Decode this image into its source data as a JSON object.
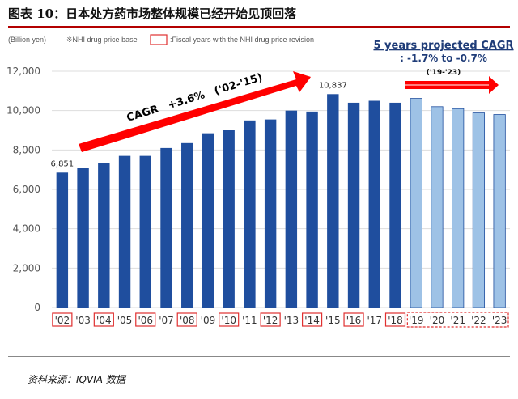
{
  "title": "图表 10：日本处方药市场整体规模已经开始见顶回落",
  "source": "资料来源：IQVIA 数据",
  "legend": {
    "unit": "(Billion yen)",
    "base_note": "※NHI drug price base",
    "revision_note": ":Fiscal years with the NHI drug price revision"
  },
  "colors": {
    "actual_bar": "#1f4e9e",
    "projected_bar": "#9ec2e6",
    "projected_edge": "#1f4e9e",
    "arrow": "#ff0000",
    "revision_box": "#e03030",
    "axis_text": "#555555"
  },
  "chart_data": {
    "type": "bar",
    "categories": [
      "'02",
      "'03",
      "'04",
      "'05",
      "'06",
      "'07",
      "'08",
      "'09",
      "'10",
      "'11",
      "'12",
      "'13",
      "'14",
      "'15",
      "'16",
      "'17",
      "'18",
      "'19",
      "'20",
      "'21",
      "'22",
      "'23"
    ],
    "values": [
      6851,
      7100,
      7350,
      7700,
      7700,
      8100,
      8350,
      8850,
      9000,
      9500,
      9550,
      10000,
      9950,
      10837,
      10400,
      10500,
      10400,
      10620,
      10200,
      10100,
      9880,
      9800
    ],
    "projected_from_index": 17,
    "revision_years": [
      "'02",
      "'04",
      "'06",
      "'08",
      "'10",
      "'12",
      "'14",
      "'16",
      "'18"
    ],
    "projected_revision_group": [
      "'19",
      "'20",
      "'21",
      "'22",
      "'23"
    ],
    "data_labels": [
      {
        "category": "'02",
        "text": "6,851"
      },
      {
        "category": "'15",
        "text": "10,837"
      }
    ],
    "y_ticks": [
      "0",
      "2,000",
      "4,000",
      "6,000",
      "8,000",
      "10,000",
      "12,000"
    ],
    "ylim": [
      0,
      12000
    ],
    "grid": true,
    "annotations": {
      "cagr_hist": "CAGR　+3.6%　('02-'15)",
      "cagr_proj_line1": "5 years projected CAGR",
      "cagr_proj_line2": ": -1.7% to -0.7%",
      "cagr_proj_line3": "('19-'23)"
    }
  }
}
